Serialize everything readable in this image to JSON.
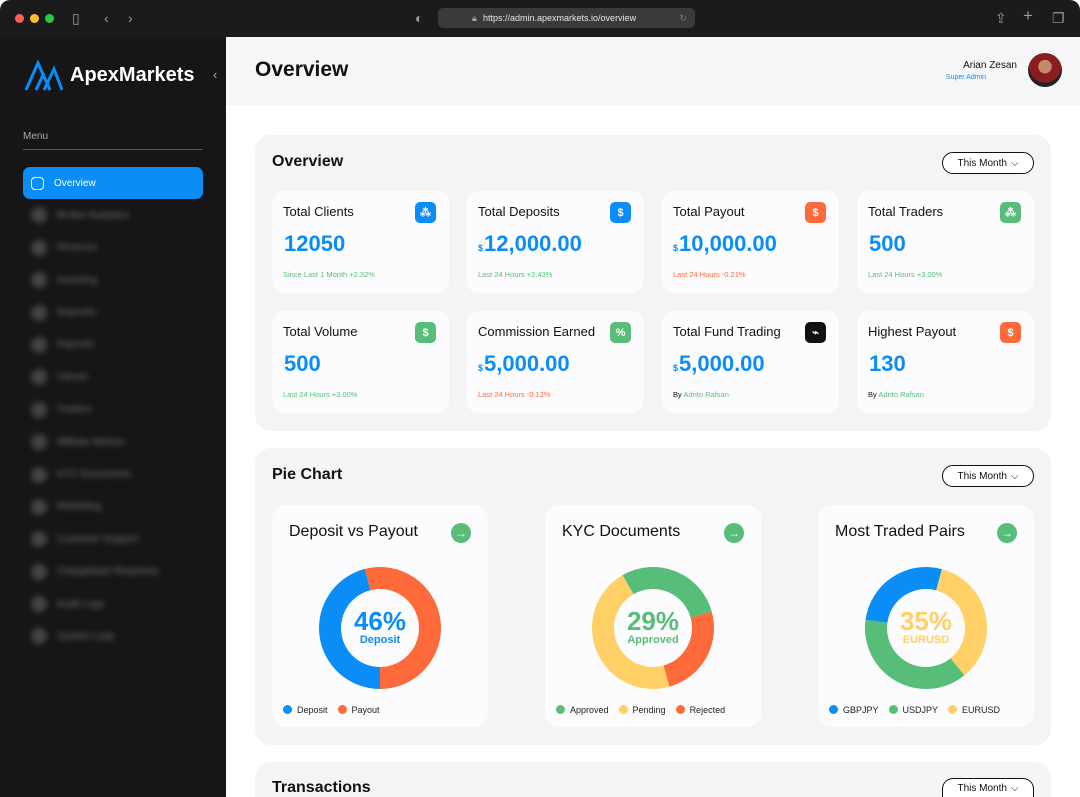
{
  "browser": {
    "url": "https://admin.apexmarkets.io/overview"
  },
  "brand": {
    "name": "ApexMarkets"
  },
  "sidebar": {
    "menu_label": "Menu",
    "items": [
      {
        "label": "Overview",
        "active": true
      },
      {
        "label": "Broker Analytics"
      },
      {
        "label": "Revenue"
      },
      {
        "label": "Investing"
      },
      {
        "label": "Deposits"
      },
      {
        "label": "Payouts"
      },
      {
        "label": "Clients"
      },
      {
        "label": "Traders"
      },
      {
        "label": "Affiliate Metrics"
      },
      {
        "label": "KYC Documents"
      },
      {
        "label": "Marketing"
      },
      {
        "label": "Customer Support"
      },
      {
        "label": "Chargeback Response"
      },
      {
        "label": "Audit Logs"
      },
      {
        "label": "System Logs"
      }
    ]
  },
  "header": {
    "title": "Overview",
    "user_name": "Arian Zesan",
    "user_role": "Super Admin"
  },
  "overview": {
    "title": "Overview",
    "period": "This Month",
    "cards": [
      {
        "title": "Total Clients",
        "currency": "",
        "value": "12050",
        "sub": "Since Last 1 Month +2.32%",
        "sub_color": "#57bd79",
        "icon": "network-icon",
        "icon_bg": "#0a8df7"
      },
      {
        "title": "Total Deposits",
        "currency": "$",
        "value": "12,000.00",
        "sub": "Last 24 Hours +2.43%",
        "sub_color": "#57bd79",
        "icon": "dollar-cycle-icon",
        "icon_bg": "#0a8df7"
      },
      {
        "title": "Total Payout",
        "currency": "$",
        "value": "10,000.00",
        "sub": "Last 24 Hours -0.21%",
        "sub_color": "#ff6a3a",
        "icon": "dollar-out-icon",
        "icon_bg": "#ff6a3a"
      },
      {
        "title": "Total Traders",
        "currency": "",
        "value": "500",
        "sub": "Last 24 Hours +3.00%",
        "sub_color": "#57bd79",
        "icon": "network-icon",
        "icon_bg": "#57bd79"
      },
      {
        "title": "Total Volume",
        "currency": "",
        "value": "500",
        "sub": "Last 24 Hours +3.00%",
        "sub_color": "#57bd79",
        "icon": "banknote-icon",
        "icon_bg": "#57bd79"
      },
      {
        "title": "Commission Earned",
        "currency": "$",
        "value": "5,000.00",
        "sub": "Last 24 Hours -0.12%",
        "sub_color": "#ff6a3a",
        "icon": "percent-icon",
        "icon_bg": "#57bd79"
      },
      {
        "title": "Total Fund Trading",
        "currency": "$",
        "value": "5,000.00",
        "by": "By",
        "by_name": "Adrito Rafsan",
        "icon": "presentation-chart-icon",
        "icon_bg": "#111111"
      },
      {
        "title": "Highest Payout",
        "currency": "",
        "value": "130",
        "by": "By",
        "by_name": "Adrito Rafsan",
        "icon": "dollar-out-icon",
        "icon_bg": "#ff6a3a"
      }
    ]
  },
  "pie": {
    "title": "Pie Chart",
    "period": "This Month"
  },
  "transactions": {
    "title": "Transactions",
    "period": "This Month"
  },
  "chart_data": [
    {
      "type": "pie",
      "title": "Deposit vs Payout",
      "center_value": "46%",
      "center_label": "Deposit",
      "center_color": "#0a8df7",
      "slices": [
        {
          "name": "Deposit",
          "value": 46,
          "color": "#0a8df7"
        },
        {
          "name": "Payout",
          "value": 54,
          "color": "#ff6a3a"
        }
      ]
    },
    {
      "type": "pie",
      "title": "KYC Documents",
      "center_value": "29%",
      "center_label": "Approved",
      "center_color": "#57bd79",
      "slices": [
        {
          "name": "Approved",
          "value": 29,
          "color": "#57bd79"
        },
        {
          "name": "Pending",
          "value": 46,
          "color": "#fed066"
        },
        {
          "name": "Rejected",
          "value": 25,
          "color": "#ff6a3a"
        }
      ]
    },
    {
      "type": "pie",
      "title": "Most Traded Pairs",
      "center_value": "35%",
      "center_label": "EURUSD",
      "center_color": "#fed066",
      "slices": [
        {
          "name": "GBPJPY",
          "value": 27,
          "color": "#0a8df7"
        },
        {
          "name": "USDJPY",
          "value": 38,
          "color": "#57bd79"
        },
        {
          "name": "EURUSD",
          "value": 35,
          "color": "#fed066"
        }
      ]
    }
  ]
}
